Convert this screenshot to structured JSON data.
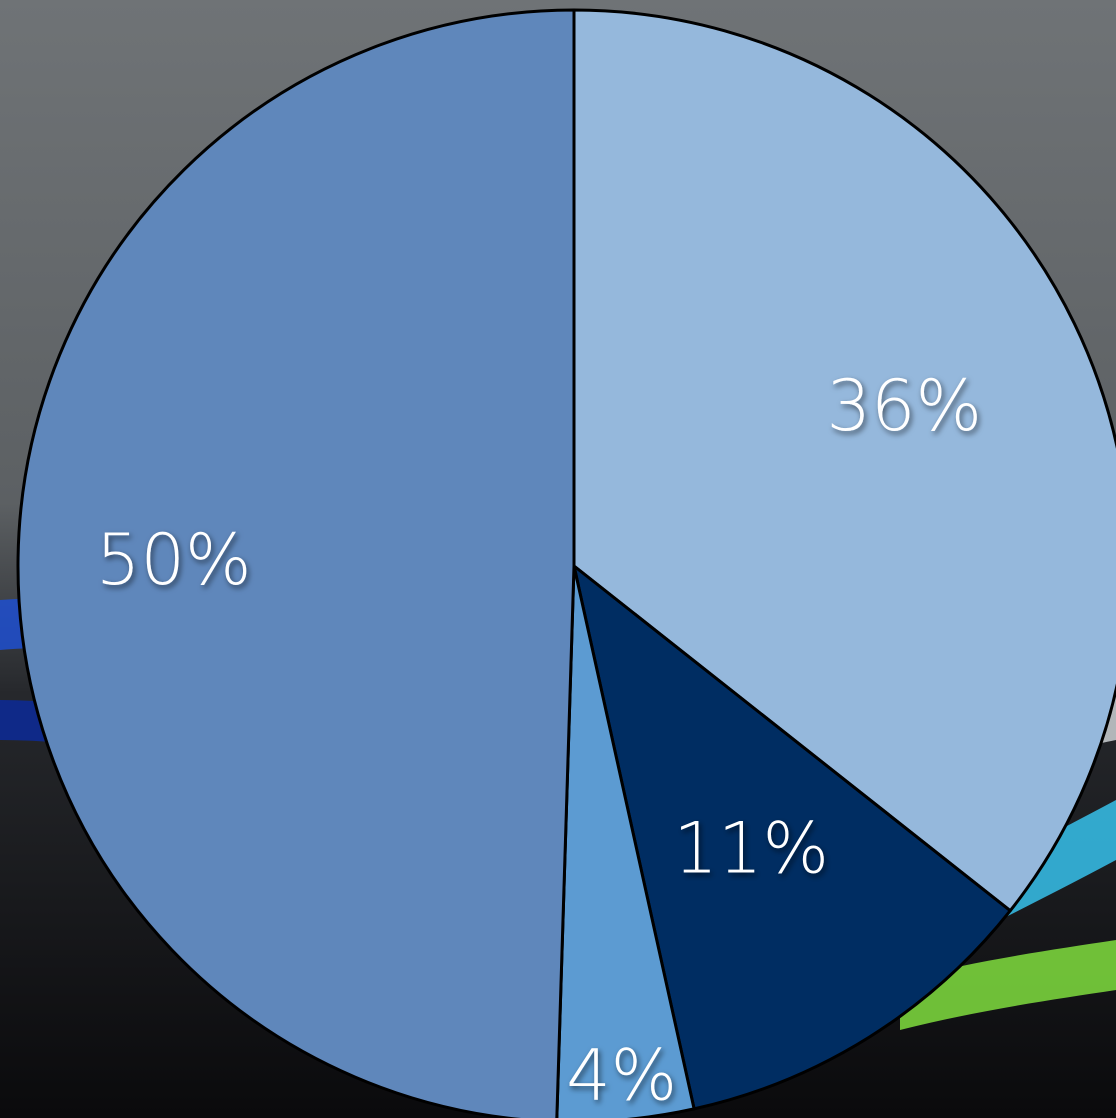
{
  "chart_data": {
    "type": "pie",
    "title": "",
    "start_angle_deg": 0,
    "direction": "clockwise",
    "slices": [
      {
        "value": 36,
        "label": "36%",
        "color": "#95b8dc"
      },
      {
        "value": 11,
        "label": "11%",
        "color": "#002d62"
      },
      {
        "value": 4,
        "label": "4%",
        "color": "#5c9bd2"
      },
      {
        "value": 50,
        "label": "50%",
        "color": "#5f87bb"
      }
    ],
    "outline_color": "#000000",
    "legend": "none"
  },
  "background": {
    "top_color": "#6f7376",
    "bottom_color": "#0a0a0c",
    "stripe_colors": [
      "#1f4fd0",
      "#0a2aa0",
      "#35b8e0",
      "#7ad33c",
      "#f0f4f7"
    ]
  }
}
